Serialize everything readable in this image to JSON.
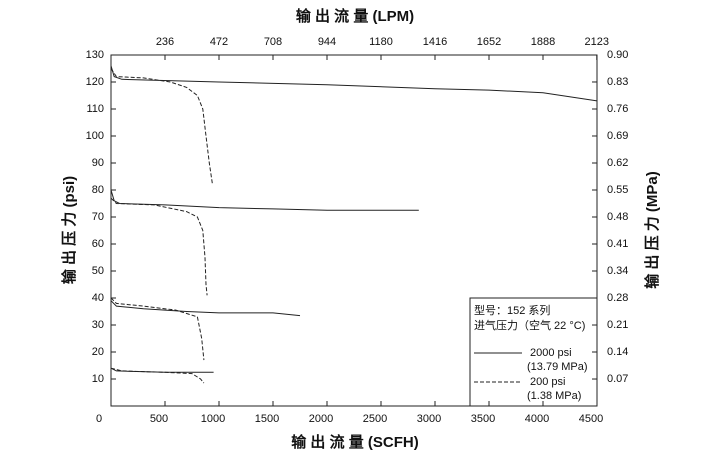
{
  "chart_data": {
    "type": "line",
    "x_title": "输 出 流 量 (SCFH)",
    "x2_title": "输 出 流 量 (LPM)",
    "y_title": "输 出 压 力 (psi)",
    "y2_title": "输 出 压 力 (MPa)",
    "xlim": [
      0,
      4500
    ],
    "xticks": [
      0,
      500,
      1000,
      1500,
      2000,
      2500,
      3000,
      3500,
      4000,
      4500
    ],
    "x2lim": [
      0,
      2124
    ],
    "x2ticks": [
      236,
      472,
      708,
      944,
      1180,
      1416,
      1652,
      1888,
      2123
    ],
    "ylim": [
      0,
      130
    ],
    "yticks": [
      10,
      20,
      30,
      40,
      50,
      60,
      70,
      80,
      90,
      100,
      110,
      120,
      130
    ],
    "y2lim": [
      0,
      0.8963
    ],
    "y2ticks": [
      {
        "value": 0.0689,
        "label": "0.07"
      },
      {
        "value": 0.1379,
        "label": "0.14"
      },
      {
        "value": 0.2068,
        "label": "0.21"
      },
      {
        "value": 0.2758,
        "label": "0.28"
      },
      {
        "value": 0.3447,
        "label": "0.34"
      },
      {
        "value": 0.4137,
        "label": "0.41"
      },
      {
        "value": 0.4826,
        "label": "0.48"
      },
      {
        "value": 0.5516,
        "label": "0.55"
      },
      {
        "value": 0.6205,
        "label": "0.62"
      },
      {
        "value": 0.6895,
        "label": "0.69"
      },
      {
        "value": 0.7584,
        "label": "0.76"
      },
      {
        "value": 0.8274,
        "label": "0.83"
      },
      {
        "value": 0.8963,
        "label": "0.90"
      }
    ],
    "color": "#222222",
    "series": [
      {
        "dashed": false,
        "x": [
          0,
          30,
          100,
          1000,
          2000,
          3000,
          3500,
          4000,
          4500
        ],
        "values": [
          126,
          122,
          121,
          120,
          119,
          117.5,
          117,
          116,
          113
        ]
      },
      {
        "dashed": true,
        "x": [
          0,
          50,
          300,
          550,
          700,
          800,
          850,
          880,
          910,
          940
        ],
        "values": [
          125,
          122,
          121.5,
          120,
          118,
          115,
          110,
          100,
          90,
          82
        ]
      },
      {
        "dashed": false,
        "x": [
          0,
          30,
          80,
          500,
          1000,
          1500,
          2000,
          2850
        ],
        "values": [
          80,
          76,
          75,
          74.5,
          73.5,
          73,
          72.5,
          72.5
        ]
      },
      {
        "dashed": true,
        "x": [
          0,
          50,
          400,
          700,
          800,
          850,
          870,
          880,
          890
        ],
        "values": [
          77,
          75,
          74.5,
          72,
          70,
          65,
          55,
          45,
          41
        ]
      },
      {
        "dashed": false,
        "x": [
          0,
          50,
          300,
          700,
          1000,
          1500,
          1750
        ],
        "values": [
          39,
          37,
          36,
          35,
          34.5,
          34.5,
          33.5
        ]
      },
      {
        "dashed": true,
        "x": [
          0,
          50,
          300,
          600,
          800,
          840,
          860
        ],
        "values": [
          40,
          38,
          37,
          35.5,
          33,
          25,
          17
        ]
      },
      {
        "dashed": false,
        "x": [
          0,
          50,
          500,
          950
        ],
        "values": [
          14,
          13,
          12.5,
          12.5
        ]
      },
      {
        "dashed": true,
        "x": [
          0,
          100,
          500,
          750,
          830,
          860
        ],
        "values": [
          14,
          13,
          12.5,
          12,
          10,
          8.5
        ]
      }
    ],
    "legend": {
      "title": [
        "型号：152 系列",
        "进气压力（空气 22 °C)"
      ],
      "entries": [
        {
          "dashed": false,
          "label": [
            "2000 psi",
            "(13.79 MPa)"
          ]
        },
        {
          "dashed": true,
          "label": [
            "200 psi",
            "(1.38 MPa)"
          ]
        }
      ]
    }
  }
}
